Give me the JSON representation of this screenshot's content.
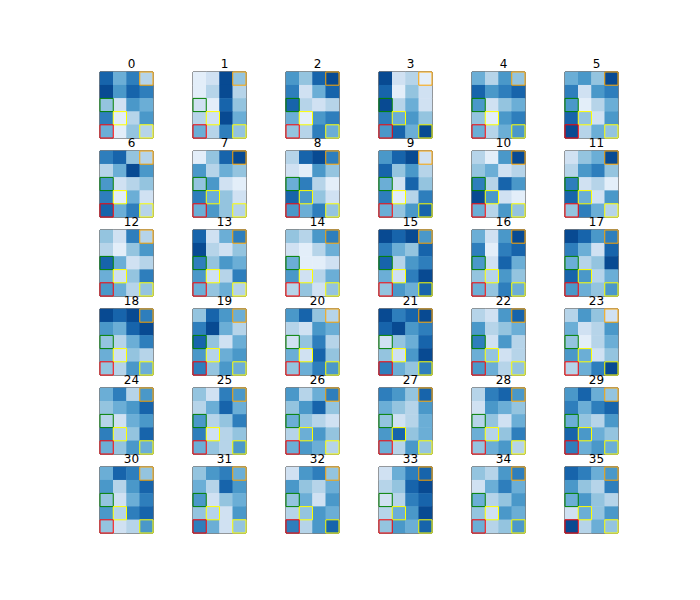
{
  "chart_data": {
    "type": "heatmap_grid",
    "clim": [
      0,
      1
    ],
    "tick_labels": false,
    "boxes": [
      {
        "color": "orange",
        "row": 0,
        "col": 3
      },
      {
        "color": "green",
        "row": 2,
        "col": 0
      },
      {
        "color": "yellow",
        "row": 3,
        "col": 1
      },
      {
        "color": "red",
        "row": 4,
        "col": 0
      },
      {
        "color": "yellow",
        "row": 4,
        "col": 3
      }
    ],
    "panels": [
      {
        "title": "0",
        "values": [
          [
            0.8,
            0.5,
            0.7,
            0.3
          ],
          [
            0.9,
            0.6,
            0.8,
            0.7
          ],
          [
            0.4,
            0.2,
            0.6,
            0.5
          ],
          [
            0.7,
            0.1,
            0.3,
            0.6
          ],
          [
            0.5,
            0.1,
            0.4,
            0.3
          ]
        ]
      },
      {
        "title": "1",
        "values": [
          [
            0.1,
            0.2,
            0.9,
            0.4
          ],
          [
            0.1,
            0.3,
            0.9,
            0.3
          ],
          [
            0.2,
            0.1,
            0.8,
            0.4
          ],
          [
            0.3,
            0.2,
            0.9,
            0.5
          ],
          [
            0.5,
            0.3,
            0.7,
            0.4
          ]
        ]
      },
      {
        "title": "2",
        "values": [
          [
            0.6,
            0.4,
            0.8,
            0.9
          ],
          [
            0.7,
            0.2,
            0.5,
            0.8
          ],
          [
            0.8,
            0.3,
            0.2,
            0.3
          ],
          [
            0.5,
            0.1,
            0.6,
            0.7
          ],
          [
            0.4,
            0.3,
            0.7,
            0.5
          ]
        ]
      },
      {
        "title": "3",
        "values": [
          [
            0.9,
            0.2,
            0.3,
            0.1
          ],
          [
            0.8,
            0.1,
            0.4,
            0.2
          ],
          [
            0.9,
            0.3,
            0.5,
            0.2
          ],
          [
            0.7,
            0.5,
            0.6,
            0.4
          ],
          [
            0.6,
            0.8,
            0.5,
            0.9
          ]
        ]
      },
      {
        "title": "4",
        "values": [
          [
            0.5,
            0.3,
            0.6,
            0.4
          ],
          [
            0.8,
            0.6,
            0.7,
            0.8
          ],
          [
            0.6,
            0.2,
            0.4,
            0.5
          ],
          [
            0.4,
            0.1,
            0.6,
            0.7
          ],
          [
            0.5,
            0.3,
            0.5,
            0.6
          ]
        ]
      },
      {
        "title": "5",
        "values": [
          [
            0.5,
            0.6,
            0.4,
            0.9
          ],
          [
            0.7,
            0.2,
            0.6,
            0.7
          ],
          [
            0.6,
            0.1,
            0.3,
            0.5
          ],
          [
            0.8,
            0.4,
            0.2,
            0.6
          ],
          [
            0.9,
            0.3,
            0.5,
            0.4
          ]
        ]
      },
      {
        "title": "6",
        "values": [
          [
            0.7,
            0.8,
            0.4,
            0.3
          ],
          [
            0.3,
            0.5,
            0.9,
            0.6
          ],
          [
            0.6,
            0.2,
            0.3,
            0.4
          ],
          [
            0.7,
            0.1,
            0.5,
            0.2
          ],
          [
            0.8,
            0.5,
            0.7,
            0.3
          ]
        ]
      },
      {
        "title": "7",
        "values": [
          [
            0.1,
            0.4,
            0.8,
            0.9
          ],
          [
            0.6,
            0.3,
            0.5,
            0.4
          ],
          [
            0.4,
            0.6,
            0.2,
            0.1
          ],
          [
            0.7,
            0.5,
            0.4,
            0.2
          ],
          [
            0.5,
            0.6,
            0.4,
            0.3
          ]
        ]
      },
      {
        "title": "8",
        "values": [
          [
            0.3,
            0.8,
            0.9,
            0.7
          ],
          [
            0.2,
            0.1,
            0.6,
            0.4
          ],
          [
            0.5,
            0.7,
            0.3,
            0.1
          ],
          [
            0.8,
            0.6,
            0.4,
            0.2
          ],
          [
            0.6,
            0.5,
            0.7,
            0.4
          ]
        ]
      },
      {
        "title": "9",
        "values": [
          [
            0.6,
            0.8,
            0.9,
            0.2
          ],
          [
            0.8,
            0.4,
            0.6,
            0.3
          ],
          [
            0.5,
            0.2,
            0.8,
            0.4
          ],
          [
            0.7,
            0.1,
            0.3,
            0.7
          ],
          [
            0.5,
            0.4,
            0.6,
            0.8
          ]
        ]
      },
      {
        "title": "10",
        "values": [
          [
            0.3,
            0.1,
            0.6,
            0.9
          ],
          [
            0.4,
            0.5,
            0.2,
            0.3
          ],
          [
            0.7,
            0.3,
            0.8,
            0.6
          ],
          [
            0.9,
            0.6,
            0.2,
            0.1
          ],
          [
            0.5,
            0.3,
            0.6,
            0.4
          ]
        ]
      },
      {
        "title": "11",
        "values": [
          [
            0.2,
            0.4,
            0.5,
            0.9
          ],
          [
            0.3,
            0.6,
            0.7,
            0.4
          ],
          [
            0.7,
            0.2,
            0.3,
            0.1
          ],
          [
            0.8,
            0.5,
            0.2,
            0.6
          ],
          [
            0.4,
            0.7,
            0.5,
            0.3
          ]
        ]
      },
      {
        "title": "12",
        "values": [
          [
            0.4,
            0.2,
            0.7,
            0.3
          ],
          [
            0.3,
            0.1,
            0.4,
            0.6
          ],
          [
            0.8,
            0.5,
            0.2,
            0.3
          ],
          [
            0.5,
            0.2,
            0.4,
            0.7
          ],
          [
            0.6,
            0.5,
            0.3,
            0.4
          ]
        ]
      },
      {
        "title": "13",
        "values": [
          [
            0.8,
            0.2,
            0.5,
            0.7
          ],
          [
            0.9,
            0.3,
            0.2,
            0.4
          ],
          [
            0.7,
            0.4,
            0.6,
            0.5
          ],
          [
            0.6,
            0.2,
            0.3,
            0.7
          ],
          [
            0.5,
            0.4,
            0.5,
            0.3
          ]
        ]
      },
      {
        "title": "14",
        "values": [
          [
            0.4,
            0.3,
            0.6,
            0.7
          ],
          [
            0.2,
            0.1,
            0.3,
            0.5
          ],
          [
            0.5,
            0.1,
            0.1,
            0.2
          ],
          [
            0.6,
            0.2,
            0.3,
            0.5
          ],
          [
            0.3,
            0.4,
            0.2,
            0.4
          ]
        ]
      },
      {
        "title": "15",
        "values": [
          [
            0.9,
            0.8,
            0.9,
            0.6
          ],
          [
            0.7,
            0.5,
            0.4,
            0.8
          ],
          [
            0.8,
            0.3,
            0.6,
            0.7
          ],
          [
            0.5,
            0.2,
            0.7,
            0.9
          ],
          [
            0.4,
            0.6,
            0.5,
            0.8
          ]
        ]
      },
      {
        "title": "16",
        "values": [
          [
            0.5,
            0.2,
            0.6,
            0.9
          ],
          [
            0.7,
            0.1,
            0.7,
            0.8
          ],
          [
            0.6,
            0.2,
            0.8,
            0.5
          ],
          [
            0.4,
            0.3,
            0.6,
            0.4
          ],
          [
            0.5,
            0.4,
            0.7,
            0.5
          ]
        ]
      },
      {
        "title": "17",
        "values": [
          [
            0.9,
            0.8,
            0.6,
            0.7
          ],
          [
            0.7,
            0.5,
            0.2,
            0.8
          ],
          [
            0.5,
            0.3,
            0.4,
            0.9
          ],
          [
            0.8,
            0.6,
            0.3,
            0.5
          ],
          [
            0.6,
            0.5,
            0.4,
            0.6
          ]
        ]
      },
      {
        "title": "18",
        "values": [
          [
            0.9,
            0.8,
            0.9,
            0.7
          ],
          [
            0.6,
            0.5,
            0.8,
            0.9
          ],
          [
            0.4,
            0.3,
            0.5,
            0.7
          ],
          [
            0.5,
            0.2,
            0.4,
            0.3
          ],
          [
            0.4,
            0.3,
            0.6,
            0.5
          ]
        ]
      },
      {
        "title": "19",
        "values": [
          [
            0.4,
            0.8,
            0.6,
            0.5
          ],
          [
            0.7,
            0.9,
            0.5,
            0.3
          ],
          [
            0.8,
            0.4,
            0.2,
            0.5
          ],
          [
            0.6,
            0.3,
            0.5,
            0.6
          ],
          [
            0.7,
            0.4,
            0.6,
            0.5
          ]
        ]
      },
      {
        "title": "20",
        "values": [
          [
            0.6,
            0.8,
            0.4,
            0.3
          ],
          [
            0.3,
            0.2,
            0.6,
            0.5
          ],
          [
            0.2,
            0.4,
            0.7,
            0.3
          ],
          [
            0.5,
            0.2,
            0.8,
            0.4
          ],
          [
            0.4,
            0.5,
            0.7,
            0.6
          ]
        ]
      },
      {
        "title": "21",
        "values": [
          [
            0.9,
            0.7,
            0.8,
            0.9
          ],
          [
            0.8,
            0.9,
            0.6,
            0.7
          ],
          [
            0.2,
            0.4,
            0.5,
            0.8
          ],
          [
            0.4,
            0.2,
            0.6,
            0.9
          ],
          [
            0.7,
            0.5,
            0.4,
            0.7
          ]
        ]
      },
      {
        "title": "22",
        "values": [
          [
            0.3,
            0.2,
            0.6,
            0.8
          ],
          [
            0.6,
            0.3,
            0.4,
            0.5
          ],
          [
            0.7,
            0.2,
            0.6,
            0.3
          ],
          [
            0.5,
            0.4,
            0.2,
            0.3
          ],
          [
            0.6,
            0.5,
            0.3,
            0.4
          ]
        ]
      },
      {
        "title": "23",
        "values": [
          [
            0.3,
            0.6,
            0.4,
            0.2
          ],
          [
            0.5,
            0.2,
            0.3,
            0.6
          ],
          [
            0.4,
            0.1,
            0.3,
            0.5
          ],
          [
            0.6,
            0.5,
            0.2,
            0.4
          ],
          [
            0.3,
            0.5,
            0.7,
            0.9
          ]
        ]
      },
      {
        "title": "24",
        "values": [
          [
            0.5,
            0.7,
            0.3,
            0.6
          ],
          [
            0.4,
            0.5,
            0.6,
            0.8
          ],
          [
            0.3,
            0.2,
            0.5,
            0.6
          ],
          [
            0.7,
            0.3,
            0.4,
            0.8
          ],
          [
            0.5,
            0.4,
            0.6,
            0.5
          ]
        ]
      },
      {
        "title": "25",
        "values": [
          [
            0.4,
            0.2,
            0.7,
            0.6
          ],
          [
            0.3,
            0.5,
            0.8,
            0.5
          ],
          [
            0.6,
            0.3,
            0.4,
            0.7
          ],
          [
            0.7,
            0.2,
            0.3,
            0.4
          ],
          [
            0.5,
            0.4,
            0.3,
            0.6
          ]
        ]
      },
      {
        "title": "26",
        "values": [
          [
            0.6,
            0.3,
            0.5,
            0.7
          ],
          [
            0.4,
            0.6,
            0.8,
            0.4
          ],
          [
            0.5,
            0.4,
            0.3,
            0.2
          ],
          [
            0.3,
            0.5,
            0.6,
            0.4
          ],
          [
            0.5,
            0.6,
            0.5,
            0.3
          ]
        ]
      },
      {
        "title": "27",
        "values": [
          [
            0.7,
            0.6,
            0.4,
            0.8
          ],
          [
            0.5,
            0.4,
            0.3,
            0.6
          ],
          [
            0.4,
            0.2,
            0.3,
            0.5
          ],
          [
            0.6,
            0.8,
            0.4,
            0.5
          ],
          [
            0.5,
            0.3,
            0.6,
            0.4
          ]
        ]
      },
      {
        "title": "28",
        "values": [
          [
            0.3,
            0.7,
            0.8,
            0.6
          ],
          [
            0.2,
            0.6,
            0.5,
            0.4
          ],
          [
            0.3,
            0.4,
            0.2,
            0.5
          ],
          [
            0.5,
            0.3,
            0.4,
            0.7
          ],
          [
            0.4,
            0.5,
            0.6,
            0.3
          ]
        ]
      },
      {
        "title": "29",
        "values": [
          [
            0.6,
            0.8,
            0.5,
            0.4
          ],
          [
            0.7,
            0.5,
            0.7,
            0.8
          ],
          [
            0.5,
            0.4,
            0.3,
            0.6
          ],
          [
            0.8,
            0.6,
            0.5,
            0.4
          ],
          [
            0.7,
            0.5,
            0.6,
            0.5
          ]
        ]
      },
      {
        "title": "30",
        "values": [
          [
            0.5,
            0.8,
            0.7,
            0.4
          ],
          [
            0.6,
            0.3,
            0.6,
            0.8
          ],
          [
            0.4,
            0.2,
            0.5,
            0.7
          ],
          [
            0.6,
            0.3,
            0.7,
            0.8
          ],
          [
            0.4,
            0.2,
            0.3,
            0.6
          ]
        ]
      },
      {
        "title": "31",
        "values": [
          [
            0.4,
            0.6,
            0.7,
            0.5
          ],
          [
            0.5,
            0.3,
            0.8,
            0.6
          ],
          [
            0.6,
            0.2,
            0.4,
            0.5
          ],
          [
            0.4,
            0.3,
            0.2,
            0.6
          ],
          [
            0.7,
            0.5,
            0.2,
            0.4
          ]
        ]
      },
      {
        "title": "32",
        "values": [
          [
            0.2,
            0.6,
            0.7,
            0.4
          ],
          [
            0.6,
            0.4,
            0.3,
            0.5
          ],
          [
            0.4,
            0.5,
            0.2,
            0.6
          ],
          [
            0.3,
            0.4,
            0.6,
            0.5
          ],
          [
            0.7,
            0.3,
            0.6,
            0.8
          ]
        ]
      },
      {
        "title": "33",
        "values": [
          [
            0.2,
            0.5,
            0.7,
            0.8
          ],
          [
            0.3,
            0.4,
            0.8,
            0.9
          ],
          [
            0.2,
            0.3,
            0.7,
            0.8
          ],
          [
            0.3,
            0.5,
            0.6,
            0.9
          ],
          [
            0.4,
            0.6,
            0.5,
            0.8
          ]
        ]
      },
      {
        "title": "34",
        "values": [
          [
            0.4,
            0.3,
            0.6,
            0.7
          ],
          [
            0.2,
            0.5,
            0.7,
            0.5
          ],
          [
            0.5,
            0.3,
            0.4,
            0.6
          ],
          [
            0.4,
            0.2,
            0.6,
            0.5
          ],
          [
            0.5,
            0.3,
            0.4,
            0.6
          ]
        ]
      },
      {
        "title": "35",
        "values": [
          [
            0.8,
            0.7,
            0.5,
            0.6
          ],
          [
            0.6,
            0.4,
            0.3,
            0.7
          ],
          [
            0.5,
            0.6,
            0.4,
            0.3
          ],
          [
            0.2,
            0.5,
            0.4,
            0.6
          ],
          [
            0.9,
            0.3,
            0.5,
            0.4
          ]
        ]
      }
    ]
  }
}
